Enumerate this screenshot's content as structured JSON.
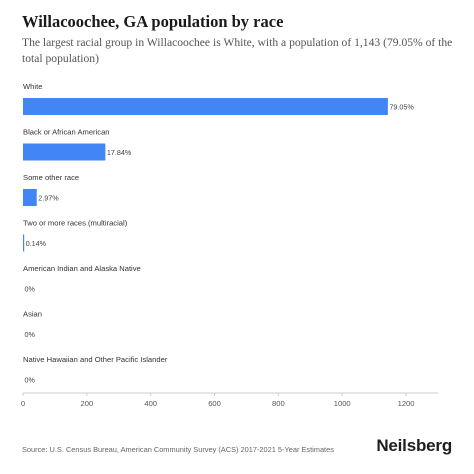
{
  "title": "Willacoochee, GA population by race",
  "subtitle": "The largest racial group in Willacoochee is White, with a population of 1,143 (79.05% of the total population)",
  "source": "Source: U.S. Census Bureau, American Community Survey (ACS) 2017-2021 5-Year Estimates",
  "brand": "Neilsberg",
  "colors": {
    "bar": "#4285f4",
    "axis": "#cccccc",
    "label_text": "#333333",
    "value_text": "#444444",
    "tick_text": "#555555"
  },
  "chart_data": {
    "type": "bar",
    "orientation": "horizontal",
    "categories": [
      "White",
      "Black or African American",
      "Some other race",
      "Two or more races (multiracial)",
      "American Indian and Alaska Native",
      "Asian",
      "Native Hawaiian and Other Pacific Islander"
    ],
    "values": [
      1143,
      258,
      43,
      2,
      0,
      0,
      0
    ],
    "data_labels": [
      "79.05%",
      "17.84%",
      "2.97%",
      "0.14%",
      "0%",
      "0%",
      "0%"
    ],
    "xlim": [
      0,
      1300
    ],
    "xticks": [
      0,
      200,
      400,
      600,
      800,
      1000,
      1200
    ],
    "grid": false,
    "legend": "none"
  }
}
